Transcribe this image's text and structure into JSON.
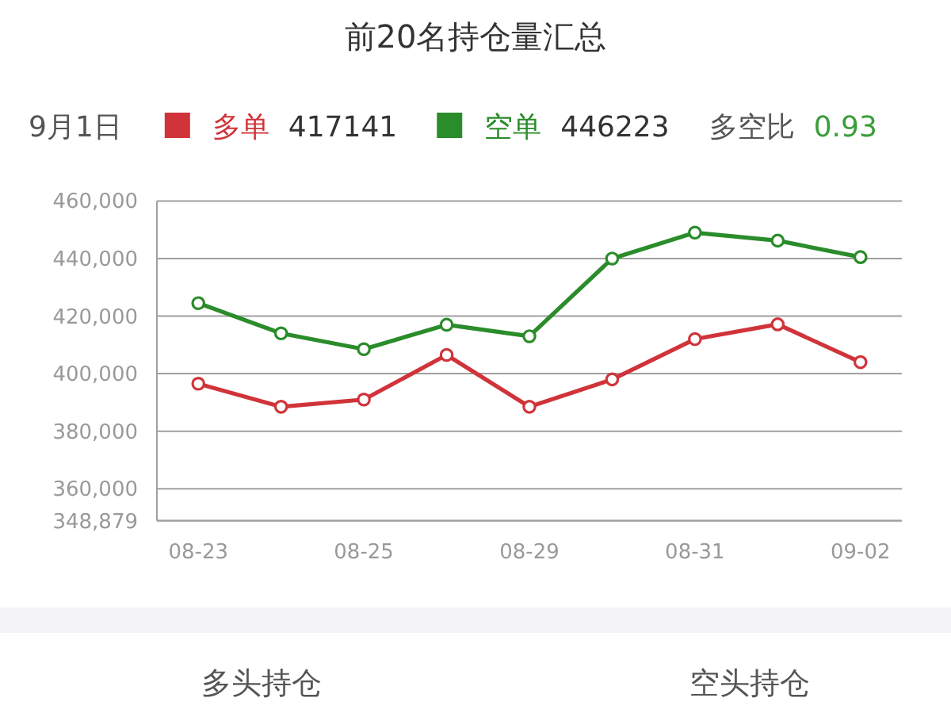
{
  "chart_data": {
    "type": "line",
    "title": "前20名持仓量汇总",
    "categories": [
      "08-23",
      null,
      "08-25",
      null,
      "08-29",
      null,
      "08-31",
      null,
      "09-02"
    ],
    "series": [
      {
        "name": "多单",
        "color": "#d0343a",
        "values": [
          396500,
          388500,
          391000,
          406500,
          388500,
          398000,
          412000,
          417141,
          404000
        ]
      },
      {
        "name": "空单",
        "color": "#2a8c2a",
        "values": [
          424500,
          414000,
          408500,
          417000,
          413000,
          440000,
          449000,
          446223,
          440500
        ]
      }
    ],
    "ylim": [
      348879,
      460000
    ],
    "yticks": [
      {
        "value": 348879,
        "label": "348,879"
      },
      {
        "value": 360000,
        "label": "360,000"
      },
      {
        "value": 380000,
        "label": "380,000"
      },
      {
        "value": 400000,
        "label": "400,000"
      },
      {
        "value": 420000,
        "label": "420,000"
      },
      {
        "value": 440000,
        "label": "440,000"
      },
      {
        "value": 460000,
        "label": "460,000"
      }
    ],
    "grid": "y",
    "legend": "top",
    "marker": "circle",
    "line_style": "solid",
    "annotations": [
      "9月1日",
      "417141",
      "446223",
      "多空比",
      "0.93",
      "多头持仓",
      "空头持仓"
    ]
  }
}
